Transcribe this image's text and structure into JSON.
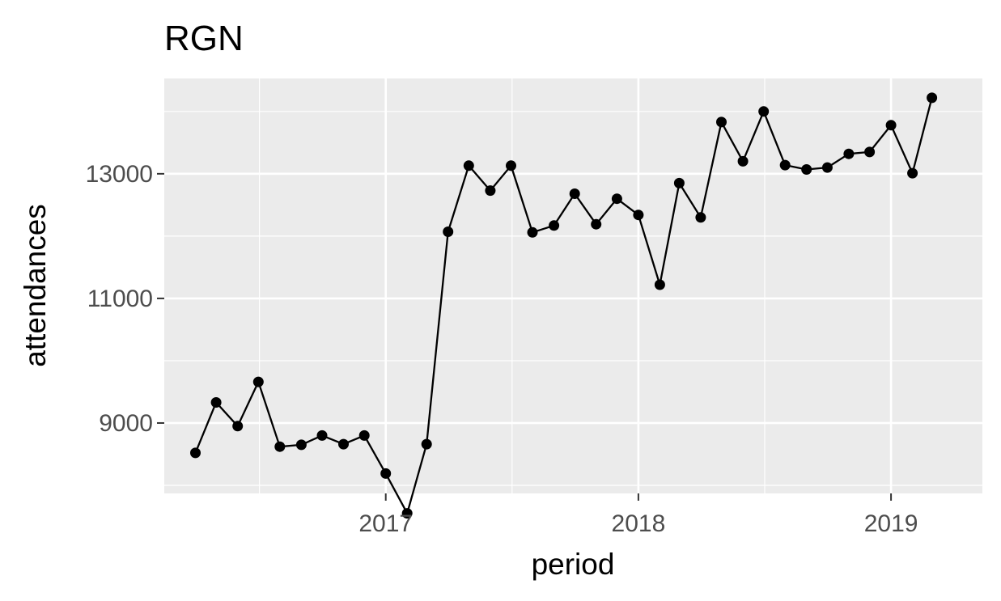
{
  "chart_data": {
    "type": "line",
    "title": "RGN",
    "xlabel": "period",
    "ylabel": "attendances",
    "xlim": [
      "2016-02-16",
      "2019-05-13"
    ],
    "ylim": [
      7870,
      14530
    ],
    "x_ticks": [
      {
        "date": "2017-01-01",
        "label": "2017"
      },
      {
        "date": "2018-01-01",
        "label": "2018"
      },
      {
        "date": "2019-01-01",
        "label": "2019"
      }
    ],
    "y_ticks": [
      {
        "value": 9000,
        "label": "9000"
      },
      {
        "value": 11000,
        "label": "11000"
      },
      {
        "value": 13000,
        "label": "13000"
      }
    ],
    "grid": true,
    "panel_background": "#ebebeb",
    "line_color": "#000000",
    "point_color": "#000000",
    "series": [
      {
        "x": [
          "2016-04-01",
          "2016-05-01",
          "2016-06-01",
          "2016-07-01",
          "2016-08-01",
          "2016-09-01",
          "2016-10-01",
          "2016-11-01",
          "2016-12-01",
          "2017-01-01",
          "2017-02-01",
          "2017-03-01",
          "2017-04-01",
          "2017-05-01",
          "2017-06-01",
          "2017-07-01",
          "2017-08-01",
          "2017-09-01",
          "2017-10-01",
          "2017-11-01",
          "2017-12-01",
          "2018-01-01",
          "2018-02-01",
          "2018-03-01",
          "2018-04-01",
          "2018-05-01",
          "2018-06-01",
          "2018-07-01",
          "2018-08-01",
          "2018-09-01",
          "2018-10-01",
          "2018-11-01",
          "2018-12-01",
          "2019-01-01",
          "2019-02-01",
          "2019-03-01"
        ],
        "values": [
          8520,
          9330,
          8950,
          9660,
          8620,
          8650,
          8800,
          8660,
          8800,
          8190,
          7550,
          8660,
          12070,
          13130,
          12730,
          13130,
          12060,
          12170,
          12680,
          12190,
          12600,
          12340,
          11220,
          12850,
          12300,
          13830,
          13200,
          14000,
          13140,
          13070,
          13100,
          13320,
          13350,
          13780,
          13010,
          14220
        ]
      }
    ]
  }
}
